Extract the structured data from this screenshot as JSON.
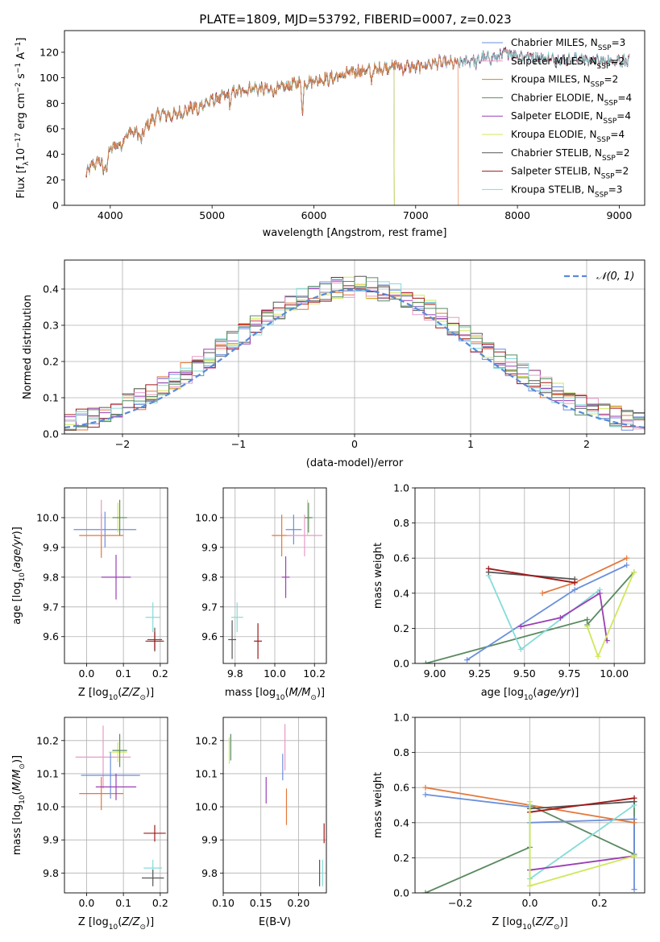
{
  "figure": {
    "title": "PLATE=1809, MJD=53792, FIBERID=0007, z=0.023"
  },
  "colors": {
    "Chabrier MILES": "#6a8fdc",
    "Salpeter MILES": "#e89ac7",
    "Kroupa MILES": "#c48a28",
    "Chabrier ELODIE": "#5a8a60",
    "Salpeter ELODIE": "#9b3fb5",
    "Kroupa ELODIE": "#cfe85a",
    "Chabrier STELIB": "#555555",
    "Salpeter STELIB": "#a01818",
    "Kroupa STELIB": "#84dcd8",
    "orange": "#e5773a",
    "gaussian": "#5a8ad8",
    "grid": "#b0b0b0"
  },
  "chart_data": [
    {
      "type": "line",
      "id": "spectrum",
      "xlabel": "wavelength [Angstrom, rest frame]",
      "ylabel": "Flux [f",
      "ylabel_parts": [
        "Flux [f",
        "λ",
        "10",
        "−17",
        " erg cm",
        "−2",
        " s",
        "−1",
        " A",
        "−1",
        "]"
      ],
      "xlim": [
        3550,
        9250
      ],
      "ylim": [
        0,
        137
      ],
      "xticks": [
        4000,
        5000,
        6000,
        7000,
        8000,
        9000
      ],
      "yticks": [
        0,
        20,
        40,
        60,
        80,
        100,
        120
      ],
      "grid": false,
      "legend_position": "right",
      "spectrum_anchors": {
        "x": [
          3760,
          3800,
          3900,
          3950,
          4000,
          4100,
          4200,
          4300,
          4400,
          4500,
          4600,
          4800,
          5000,
          5200,
          5400,
          5600,
          5800,
          6000,
          6200,
          6400,
          6600,
          6800,
          7000,
          7200,
          7400,
          7600,
          7800,
          7900,
          8000,
          8200,
          8400,
          8600,
          8800,
          9000,
          9100
        ],
        "y": [
          22,
          30,
          35,
          38,
          44,
          50,
          58,
          56,
          66,
          72,
          70,
          76,
          82,
          88,
          92,
          90,
          95,
          98,
          100,
          105,
          106,
          110,
          108,
          112,
          111,
          115,
          116,
          120,
          118,
          116,
          114,
          115,
          113,
          114,
          112
        ]
      },
      "series": [
        {
          "label_parts": [
            "Chabrier MILES, N",
            "SSP",
            "=3"
          ],
          "color_key": "Chabrier MILES",
          "cutoff": null
        },
        {
          "label_parts": [
            "Salpeter MILES, N",
            "SSP",
            "=2"
          ],
          "color_key": "Salpeter MILES",
          "cutoff": null
        },
        {
          "label_parts": [
            "Kroupa MILES, N",
            "SSP",
            "=2"
          ],
          "color_key": "Kroupa MILES",
          "cutoff": 6790
        },
        {
          "label_parts": [
            "Chabrier ELODIE, N",
            "SSP",
            "=4"
          ],
          "color_key": "Chabrier ELODIE",
          "cutoff": 6790
        },
        {
          "label_parts": [
            "Salpeter ELODIE, N",
            "SSP",
            "=4"
          ],
          "color_key": "Salpeter ELODIE",
          "cutoff": null
        },
        {
          "label_parts": [
            "Kroupa ELODIE, N",
            "SSP",
            "=4"
          ],
          "color_key": "Kroupa ELODIE",
          "cutoff": 6790
        },
        {
          "label_parts": [
            "Chabrier STELIB, N",
            "SSP",
            "=2"
          ],
          "color_key": "Chabrier STELIB",
          "cutoff": null
        },
        {
          "label_parts": [
            "Salpeter STELIB, N",
            "SSP",
            "=2"
          ],
          "color_key": "Salpeter STELIB",
          "cutoff": null
        },
        {
          "label_parts": [
            "Kroupa STELIB, N",
            "SSP",
            "=3"
          ],
          "color_key": "Kroupa STELIB",
          "cutoff": null
        }
      ],
      "extra_cutoff_line": {
        "color_key": "orange",
        "cutoff": 7420
      }
    },
    {
      "type": "histogram",
      "id": "residuals",
      "xlabel": "(data-model)/error",
      "ylabel": "Normed distribution",
      "xlim": [
        -2.5,
        2.5
      ],
      "ylim": [
        0,
        0.48
      ],
      "xticks": [
        -2,
        -1,
        0,
        1,
        2
      ],
      "xtick_labels": [
        "−2",
        "−1",
        "0",
        "1",
        "2"
      ],
      "yticks": [
        0.0,
        0.1,
        0.2,
        0.3,
        0.4
      ],
      "ytick_labels": [
        "0.0",
        "0.1",
        "0.2",
        "0.3",
        "0.4"
      ],
      "grid": true,
      "bin_width": 0.1,
      "legend_label": "𝒩(0, 1)",
      "legend_position": "top-right",
      "histogram_colors": [
        "Chabrier MILES",
        "orange",
        "Kroupa ELODIE",
        "Chabrier STELIB",
        "Salpeter ELODIE",
        "Salpeter MILES",
        "Salpeter STELIB",
        "Kroupa STELIB",
        "Chabrier ELODIE"
      ]
    },
    {
      "type": "errorbar",
      "id": "age-vs-Z",
      "xlabel": "Z [log",
      "ylabel": "age  [log",
      "xlim": [
        -0.06,
        0.22
      ],
      "ylim": [
        9.51,
        10.1
      ],
      "xticks": [
        0.0,
        0.1,
        0.2
      ],
      "xtick_labels": [
        "0.0",
        "0.1",
        "0.2"
      ],
      "yticks": [
        9.6,
        9.7,
        9.8,
        9.9,
        10.0
      ],
      "ytick_labels": [
        "9.6",
        "9.7",
        "9.8",
        "9.9",
        "10.0"
      ],
      "grid": true,
      "points": [
        {
          "c": "Chabrier MILES",
          "x": 0.05,
          "xe": 0.085,
          "y": 9.96,
          "ye": 0.06
        },
        {
          "c": "orange",
          "x": 0.04,
          "xe": 0.06,
          "y": 9.94,
          "ye": 0.075
        },
        {
          "c": "Salpeter MILES",
          "x": 0.04,
          "xe": 0.0,
          "y": 10.0,
          "ye": 0.06
        },
        {
          "c": "Kroupa ELODIE",
          "x": 0.085,
          "xe": 0.025,
          "y": 10.0,
          "ye": 0.05
        },
        {
          "c": "Chabrier ELODIE",
          "x": 0.09,
          "xe": 0.02,
          "y": 10.0,
          "ye": 0.06
        },
        {
          "c": "Salpeter ELODIE",
          "x": 0.08,
          "xe": 0.04,
          "y": 9.8,
          "ye": 0.075
        },
        {
          "c": "Kroupa STELIB",
          "x": 0.18,
          "xe": 0.02,
          "y": 9.665,
          "ye": 0.05
        },
        {
          "c": "Chabrier STELIB",
          "x": 0.185,
          "xe": 0.02,
          "y": 9.59,
          "ye": 0.04
        },
        {
          "c": "Salpeter STELIB",
          "x": 0.185,
          "xe": 0.025,
          "y": 9.585,
          "ye": 0.03
        }
      ]
    },
    {
      "type": "errorbar",
      "id": "age-vs-mass",
      "xlabel": "mass [log",
      "ylabel": "",
      "xlim": [
        9.74,
        10.26
      ],
      "ylim": [
        9.51,
        10.1
      ],
      "xticks": [
        9.8,
        10.0,
        10.2
      ],
      "xtick_labels": [
        "9.8",
        "10.0",
        "10.2"
      ],
      "yticks": [
        9.6,
        9.7,
        9.8,
        9.9,
        10.0
      ],
      "ytick_labels": [
        "9.6",
        "9.7",
        "9.8",
        "9.9",
        "10.0"
      ],
      "grid": true,
      "points": [
        {
          "c": "orange",
          "x": 10.035,
          "xe": 0.05,
          "y": 9.94,
          "ye": 0.07
        },
        {
          "c": "Chabrier MILES",
          "x": 10.095,
          "xe": 0.04,
          "y": 9.96,
          "ye": 0.05
        },
        {
          "c": "Salpeter MILES",
          "x": 10.15,
          "xe": 0.09,
          "y": 9.94,
          "ye": 0.07
        },
        {
          "c": "Kroupa ELODIE",
          "x": 10.165,
          "xe": 0.02,
          "y": 10.0,
          "ye": 0.06
        },
        {
          "c": "Chabrier ELODIE",
          "x": 10.17,
          "xe": 0.02,
          "y": 10.0,
          "ye": 0.05
        },
        {
          "c": "Salpeter ELODIE",
          "x": 10.055,
          "xe": 0.02,
          "y": 9.8,
          "ye": 0.07
        },
        {
          "c": "Kroupa STELIB",
          "x": 9.81,
          "xe": 0.03,
          "y": 9.665,
          "ye": 0.05
        },
        {
          "c": "Chabrier STELIB",
          "x": 9.785,
          "xe": 0.02,
          "y": 9.59,
          "ye": 0.065
        },
        {
          "c": "Salpeter STELIB",
          "x": 9.915,
          "xe": 0.02,
          "y": 9.585,
          "ye": 0.06
        }
      ]
    },
    {
      "type": "line",
      "id": "weight-vs-age",
      "xlabel": "age  [log",
      "ylabel": "mass weight",
      "xlim": [
        8.89,
        10.17
      ],
      "ylim": [
        0,
        1
      ],
      "xticks": [
        9.0,
        9.25,
        9.5,
        9.75,
        10.0
      ],
      "xtick_labels": [
        "9.00",
        "9.25",
        "9.50",
        "9.75",
        "10.00"
      ],
      "yticks": [
        0.0,
        0.2,
        0.4,
        0.6,
        0.8,
        1.0
      ],
      "ytick_labels": [
        "0.0",
        "0.2",
        "0.4",
        "0.6",
        "0.8",
        "1.0"
      ],
      "grid": true,
      "series": [
        {
          "c": "Chabrier ELODIE",
          "x": [
            8.95,
            9.85,
            9.85,
            10.11
          ],
          "y": [
            0.0,
            0.25,
            0.22,
            0.52
          ]
        },
        {
          "c": "Chabrier MILES",
          "x": [
            9.18,
            9.78,
            10.07
          ],
          "y": [
            0.02,
            0.42,
            0.56
          ]
        },
        {
          "c": "orange",
          "x": [
            9.6,
            9.78,
            10.07
          ],
          "y": [
            0.4,
            0.46,
            0.6
          ]
        },
        {
          "c": "Kroupa STELIB",
          "x": [
            9.3,
            9.48,
            9.92
          ],
          "y": [
            0.5,
            0.08,
            0.42
          ]
        },
        {
          "c": "Chabrier STELIB",
          "x": [
            9.3,
            9.78
          ],
          "y": [
            0.52,
            0.48
          ]
        },
        {
          "c": "Salpeter STELIB",
          "x": [
            9.3,
            9.78
          ],
          "y": [
            0.54,
            0.46
          ]
        },
        {
          "c": "Salpeter ELODIE",
          "x": [
            9.48,
            9.7,
            9.92,
            9.96
          ],
          "y": [
            0.21,
            0.26,
            0.4,
            0.13
          ]
        },
        {
          "c": "Kroupa ELODIE",
          "x": [
            9.85,
            9.91,
            10.11
          ],
          "y": [
            0.21,
            0.04,
            0.52
          ]
        }
      ]
    },
    {
      "type": "errorbar",
      "id": "mass-vs-Z",
      "xlabel": "Z [log",
      "ylabel": "mass [log",
      "xlim": [
        -0.06,
        0.22
      ],
      "ylim": [
        9.74,
        10.27
      ],
      "xticks": [
        0.0,
        0.1,
        0.2
      ],
      "xtick_labels": [
        "0.0",
        "0.1",
        "0.2"
      ],
      "yticks": [
        9.8,
        9.9,
        10.0,
        10.1,
        10.2
      ],
      "ytick_labels": [
        "9.8",
        "9.9",
        "10.0",
        "10.1",
        "10.2"
      ],
      "grid": true,
      "points": [
        {
          "c": "Salpeter MILES",
          "x": 0.045,
          "xe": 0.075,
          "y": 10.15,
          "ye": 0.095
        },
        {
          "c": "Kroupa ELODIE",
          "x": 0.085,
          "xe": 0.025,
          "y": 10.165,
          "ye": 0.03
        },
        {
          "c": "Chabrier ELODIE",
          "x": 0.09,
          "xe": 0.02,
          "y": 10.17,
          "ye": 0.05
        },
        {
          "c": "Chabrier MILES",
          "x": 0.065,
          "xe": 0.08,
          "y": 10.095,
          "ye": 0.07
        },
        {
          "c": "orange",
          "x": 0.04,
          "xe": 0.06,
          "y": 10.04,
          "ye": 0.05
        },
        {
          "c": "Salpeter ELODIE",
          "x": 0.08,
          "xe": 0.055,
          "y": 10.06,
          "ye": 0.04
        },
        {
          "c": "Salpeter STELIB",
          "x": 0.185,
          "xe": 0.03,
          "y": 9.92,
          "ye": 0.025
        },
        {
          "c": "Kroupa STELIB",
          "x": 0.18,
          "xe": 0.025,
          "y": 9.815,
          "ye": 0.025
        },
        {
          "c": "Chabrier STELIB",
          "x": 0.18,
          "xe": 0.03,
          "y": 9.785,
          "ye": 0.025
        }
      ]
    },
    {
      "type": "errorbar",
      "id": "mass-vs-EBV",
      "xlabel": "E(B-V)",
      "ylabel": "",
      "xlim": [
        0.1,
        0.237
      ],
      "ylim": [
        9.74,
        10.27
      ],
      "xticks": [
        0.1,
        0.15,
        0.2
      ],
      "xtick_labels": [
        "0.10",
        "0.15",
        "0.20"
      ],
      "yticks": [
        9.8,
        9.9,
        10.0,
        10.1,
        10.2
      ],
      "ytick_labels": [
        "9.8",
        "9.9",
        "10.0",
        "10.1",
        "10.2"
      ],
      "grid": true,
      "points": [
        {
          "c": "Kroupa ELODIE",
          "x": 0.108,
          "xe": 0.0,
          "y": 10.17,
          "ye": 0.04
        },
        {
          "c": "Chabrier ELODIE",
          "x": 0.11,
          "xe": 0.0,
          "y": 10.18,
          "ye": 0.04
        },
        {
          "c": "Salpeter MILES",
          "x": 0.182,
          "xe": 0.0,
          "y": 10.18,
          "ye": 0.07
        },
        {
          "c": "Chabrier MILES",
          "x": 0.179,
          "xe": 0.0,
          "y": 10.12,
          "ye": 0.04
        },
        {
          "c": "Salpeter ELODIE",
          "x": 0.157,
          "xe": 0.0,
          "y": 10.05,
          "ye": 0.04
        },
        {
          "c": "orange",
          "x": 0.184,
          "xe": 0.0,
          "y": 10.0,
          "ye": 0.055
        },
        {
          "c": "Salpeter STELIB",
          "x": 0.234,
          "xe": 0.0,
          "y": 9.92,
          "ye": 0.03
        },
        {
          "c": "Chabrier STELIB",
          "x": 0.228,
          "xe": 0.0,
          "y": 9.8,
          "ye": 0.04
        },
        {
          "c": "Kroupa STELIB",
          "x": 0.232,
          "xe": 0.0,
          "y": 9.8,
          "ye": 0.04
        }
      ]
    },
    {
      "type": "line",
      "id": "weight-vs-Z",
      "xlabel": "Z [log",
      "ylabel": "mass weight",
      "xlim": [
        -0.33,
        0.33
      ],
      "ylim": [
        0,
        1
      ],
      "xticks": [
        -0.2,
        0.0,
        0.2
      ],
      "xtick_labels": [
        "−0.2",
        "0.0",
        "0.2"
      ],
      "yticks": [
        0.0,
        0.2,
        0.4,
        0.6,
        0.8,
        1.0
      ],
      "ytick_labels": [
        "0.0",
        "0.2",
        "0.4",
        "0.6",
        "0.8",
        "1.0"
      ],
      "grid": true,
      "series": [
        {
          "c": "Chabrier ELODIE",
          "x": [
            -0.3,
            0.0,
            0.0,
            0.3,
            0.3
          ],
          "y": [
            0.0,
            0.26,
            0.5,
            0.22,
            0.52
          ]
        },
        {
          "c": "Chabrier MILES",
          "x": [
            -0.3,
            0.0,
            0.0,
            0.3,
            0.3
          ],
          "y": [
            0.56,
            0.49,
            0.4,
            0.42,
            0.02
          ]
        },
        {
          "c": "orange",
          "x": [
            -0.3,
            0.0,
            0.3
          ],
          "y": [
            0.6,
            0.5,
            0.4
          ]
        },
        {
          "c": "Kroupa STELIB",
          "x": [
            0.0,
            0.0,
            0.3
          ],
          "y": [
            0.5,
            0.08,
            0.5
          ]
        },
        {
          "c": "Chabrier STELIB",
          "x": [
            0.0,
            0.3
          ],
          "y": [
            0.48,
            0.52
          ]
        },
        {
          "c": "Salpeter STELIB",
          "x": [
            0.0,
            0.3
          ],
          "y": [
            0.46,
            0.54
          ]
        },
        {
          "c": "Salpeter ELODIE",
          "x": [
            0.0,
            0.3
          ],
          "y": [
            0.13,
            0.21
          ]
        },
        {
          "c": "Kroupa ELODIE",
          "x": [
            0.0,
            0.0,
            0.3
          ],
          "y": [
            0.52,
            0.04,
            0.21
          ]
        }
      ]
    }
  ]
}
